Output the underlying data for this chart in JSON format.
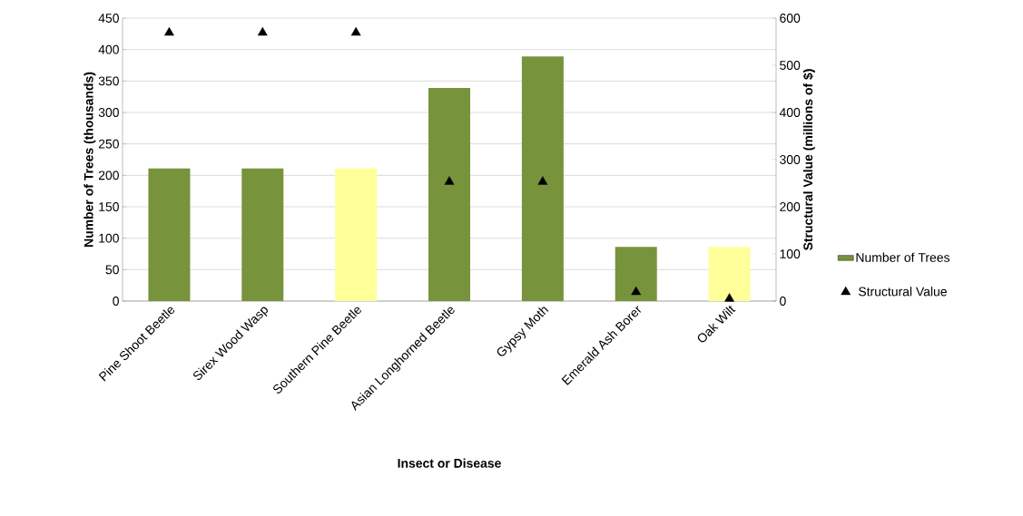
{
  "chart_data": {
    "type": "bar",
    "xlabel": "Insect or Disease",
    "ylabel": "Number of Trees (thousands)",
    "y2label": "Structural Value (millions of $)",
    "categories": [
      "Pine Shoot Beetle",
      "Sirex Wood Wasp",
      "Southern Pine Beetle",
      "Asian Longhorned Beetle",
      "Gypsy Moth",
      "Emerald Ash Borer",
      "Oak Wilt"
    ],
    "series": [
      {
        "name": "Number of Trees",
        "color": "#77933c",
        "colors": [
          "#77933c",
          "#77933c",
          "#ffff99",
          "#77933c",
          "#77933c",
          "#77933c",
          "#ffff99"
        ],
        "values": [
          211,
          211,
          211,
          339,
          389,
          86,
          86
        ]
      },
      {
        "name": "Structural Value",
        "type": "scatter",
        "axis": "y2",
        "color": "#000000",
        "marker": "triangle",
        "values": [
          569,
          569,
          569,
          253,
          253,
          19,
          5
        ]
      }
    ],
    "ylim": [
      0,
      450
    ],
    "yticks": [
      0,
      50,
      100,
      150,
      200,
      250,
      300,
      350,
      400,
      450
    ],
    "y2lim": [
      0,
      600
    ],
    "y2ticks": [
      0,
      100,
      200,
      300,
      400,
      500,
      600
    ],
    "grid": "y",
    "legend": "right"
  }
}
